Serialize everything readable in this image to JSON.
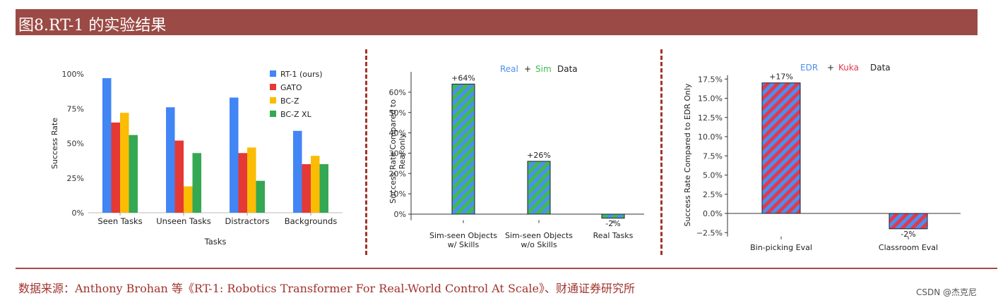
{
  "header": {
    "title": "图8.RT-1 的实验结果"
  },
  "footer": {
    "source": "数据来源：Anthony Brohan 等《RT-1: Robotics Transformer For Real-World Control At Scale》、财通证券研究所",
    "watermark": "CSDN @杰克尼"
  },
  "colors": {
    "title_bar": "#9b4a45",
    "divider": "#a0342c",
    "source_text": "#a0342c",
    "rt1": "#4285f4",
    "gato": "#e53935",
    "bcz": "#fbbc04",
    "bczxl": "#34a853",
    "sim_green": "#3dbb4f",
    "real_blue": "#4d8ff0",
    "kuka_red": "#e03a4e",
    "edr_blue": "#4d8ff0"
  },
  "chart_data": [
    {
      "type": "bar",
      "title": "",
      "xlabel": "Tasks",
      "ylabel": "Success Rate",
      "categories": [
        "Seen Tasks",
        "Unseen Tasks",
        "Distractors",
        "Backgrounds"
      ],
      "series": [
        {
          "name": "RT-1 (ours)",
          "values": [
            97,
            76,
            83,
            59
          ]
        },
        {
          "name": "GATO",
          "values": [
            65,
            52,
            43,
            35
          ]
        },
        {
          "name": "BC-Z",
          "values": [
            72,
            19,
            47,
            41
          ]
        },
        {
          "name": "BC-Z XL",
          "values": [
            56,
            43,
            23,
            35
          ]
        }
      ],
      "yticks": [
        "0%",
        "25%",
        "50%",
        "75%",
        "100%"
      ],
      "ylim": [
        0,
        100
      ],
      "grid": false,
      "legend": "top-right"
    },
    {
      "type": "bar",
      "title": "Real + Sim Data",
      "title_parts": [
        "Real",
        "+",
        "Sim",
        "Data"
      ],
      "xlabel": "",
      "ylabel": "Success Rate Compared to Real only",
      "ylabel_lines": [
        "Success Rate Compared to",
        "Real only"
      ],
      "categories": [
        [
          "Sim-seen Objects",
          "w/ Skills"
        ],
        [
          "Sim-seen Objects",
          "w/o Skills"
        ],
        [
          "Real Tasks"
        ]
      ],
      "values": [
        64,
        26,
        -2
      ],
      "data_labels": [
        "+64%",
        "+26%",
        "-2%"
      ],
      "yticks": [
        "0%",
        "10%",
        "20%",
        "30%",
        "40%",
        "50%",
        "60%"
      ],
      "ylim": [
        -3,
        70
      ],
      "grid": false,
      "legend": "none"
    },
    {
      "type": "bar",
      "title": "EDR + Kuka Data",
      "title_parts": [
        "EDR",
        "+",
        "Kuka",
        "Data"
      ],
      "xlabel": "",
      "ylabel": "Success Rate Compared to EDR Only",
      "categories": [
        "Bin-picking Eval",
        "Classroom Eval"
      ],
      "values": [
        17,
        -2
      ],
      "data_labels": [
        "+17%",
        "-2%"
      ],
      "yticks": [
        "−2.5%",
        "0.0%",
        "2.5%",
        "5.0%",
        "7.5%",
        "10.0%",
        "12.5%",
        "15.0%",
        "17.5%"
      ],
      "ylim": [
        -3,
        18
      ],
      "grid": false,
      "legend": "none"
    }
  ]
}
